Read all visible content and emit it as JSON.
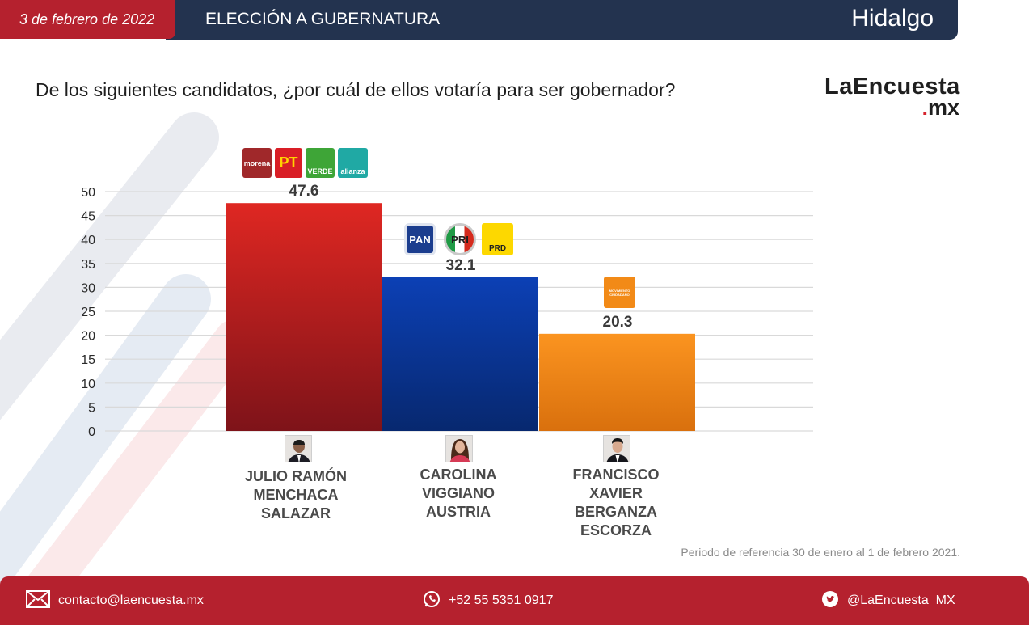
{
  "header": {
    "date": "3 de febrero de 2022",
    "title": "ELECCIÓN A GUBERNATURA",
    "state": "Hidalgo"
  },
  "question": "De los siguientes candidatos, ¿por cuál de ellos votaría para ser gobernador?",
  "logo": {
    "line1": "LaEncuesta",
    "dot": ".",
    "line2": "mx"
  },
  "party_logos": {
    "candidate1": [
      "morena",
      "PT",
      "VERDE",
      "alianza"
    ],
    "candidate2": [
      "PAN",
      "PRI",
      "PRD"
    ],
    "candidate3": [
      "MOVIMIENTO CIUDADANO"
    ]
  },
  "chart_data": {
    "type": "bar",
    "title": "",
    "xlabel": "",
    "ylabel": "",
    "ylim": [
      0,
      50
    ],
    "yticks": [
      0,
      5,
      10,
      15,
      20,
      25,
      30,
      35,
      40,
      45,
      50
    ],
    "grid": true,
    "categories": [
      "JULIO RAMÓN MENCHACA SALAZAR",
      "CAROLINA VIGGIANO AUSTRIA",
      "FRANCISCO XAVIER BERGANZA ESCORZA"
    ],
    "category_lines": [
      [
        "JULIO RAMÓN",
        "MENCHACA",
        "SALAZAR"
      ],
      [
        "CAROLINA",
        "VIGGIANO",
        "AUSTRIA"
      ],
      [
        "FRANCISCO",
        "XAVIER",
        "BERGANZA",
        "ESCORZA"
      ]
    ],
    "values": [
      47.6,
      32.1,
      20.3
    ],
    "value_labels": [
      "47.6",
      "32.1",
      "20.3"
    ],
    "colors": [
      "#c41f24",
      "#0a3aa4",
      "#f28a17"
    ]
  },
  "period_note": "Periodo de referencia 30 de enero al 1 de febrero 2021.",
  "footer": {
    "email": "contacto@laencuesta.mx",
    "phone": "+52 55 5351 0917",
    "twitter": "@LaEncuesta_MX"
  },
  "colors": {
    "header_red": "#b5212e",
    "header_navy": "#23334f"
  }
}
